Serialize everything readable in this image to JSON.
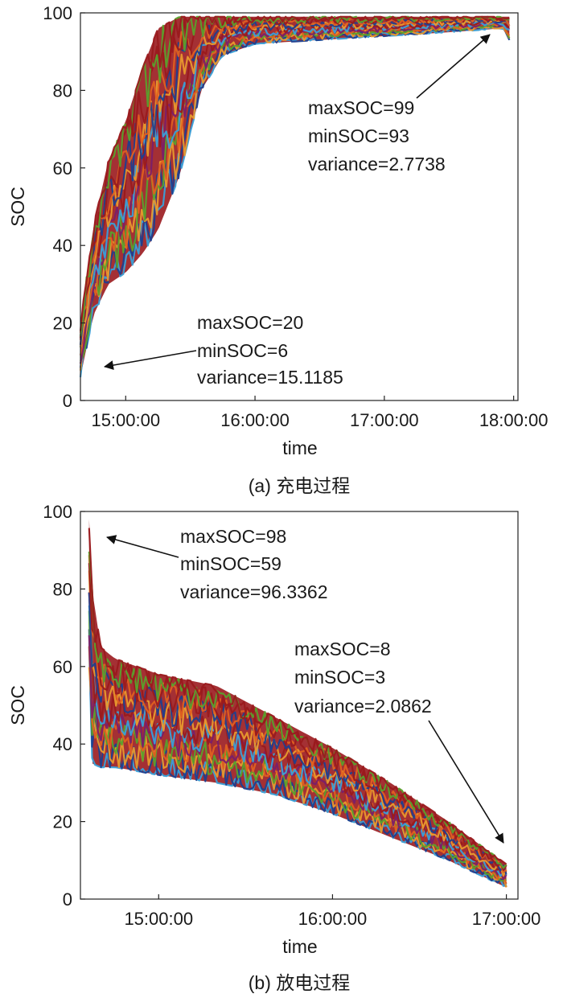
{
  "chart_data": [
    {
      "type": "line",
      "caption": "(a) 充电过程",
      "xlabel": "time",
      "ylabel": "SOC",
      "ylim": [
        0,
        100
      ],
      "xlim": [
        "14:39:00",
        "18:02:00"
      ],
      "yticks": [
        "0",
        "20",
        "40",
        "60",
        "80",
        "100"
      ],
      "xticks": [
        "15:00:00",
        "16:00:00",
        "17:00:00",
        "18:00:00"
      ],
      "series_colors": [
        "#1f3f8f",
        "#3aa0d8",
        "#e89a2e",
        "#e06020",
        "#7a1f6a",
        "#5aa02c",
        "#9a1a1e"
      ],
      "upper_envelope": {
        "x": [
          "14:39:00",
          "14:45:00",
          "14:52:00",
          "15:00:00",
          "15:08:00",
          "15:15:00",
          "15:25:00",
          "15:35:00",
          "15:45:00",
          "16:00:00",
          "16:30:00",
          "17:00:00",
          "17:30:00",
          "17:55:00",
          "17:58:00"
        ],
        "y": [
          20,
          45,
          62,
          72,
          86,
          96,
          99,
          99,
          99,
          99,
          99,
          99,
          99,
          99,
          99
        ]
      },
      "lower_envelope": {
        "x": [
          "14:39:00",
          "14:45:00",
          "14:52:00",
          "15:00:00",
          "15:08:00",
          "15:15:00",
          "15:25:00",
          "15:35:00",
          "15:45:00",
          "16:00:00",
          "16:30:00",
          "17:00:00",
          "17:30:00",
          "17:55:00",
          "17:58:00"
        ],
        "y": [
          6,
          22,
          30,
          33,
          38,
          44,
          58,
          80,
          89,
          92,
          93,
          94,
          95,
          96,
          93
        ]
      },
      "annotations": [
        {
          "lines": [
            "maxSOC=99",
            "minSOC=93",
            "variance=2.7738"
          ]
        },
        {
          "lines": [
            "maxSOC=20",
            "minSOC=6",
            "variance=15.1185"
          ]
        }
      ]
    },
    {
      "type": "line",
      "caption": "(b) 放电过程",
      "xlabel": "time",
      "ylabel": "SOC",
      "ylim": [
        0,
        100
      ],
      "xlim": [
        "14:33:00",
        "17:04:00"
      ],
      "yticks": [
        "0",
        "20",
        "40",
        "60",
        "80",
        "100"
      ],
      "xticks": [
        "15:00:00",
        "16:00:00",
        "17:00:00"
      ],
      "series_colors": [
        "#1f3f8f",
        "#3aa0d8",
        "#e89a2e",
        "#e06020",
        "#7a1f6a",
        "#5aa02c",
        "#9a1a1e"
      ],
      "upper_envelope": {
        "x": [
          "14:36:00",
          "14:37:00",
          "14:40:00",
          "14:45:00",
          "15:00:00",
          "15:20:00",
          "15:40:00",
          "16:00:00",
          "16:20:00",
          "16:40:00",
          "17:00:00"
        ],
        "y": [
          98,
          80,
          65,
          62,
          58,
          55,
          47,
          39,
          30,
          20,
          9
        ]
      },
      "lower_envelope": {
        "x": [
          "14:36:00",
          "14:37:00",
          "14:40:00",
          "14:45:00",
          "15:00:00",
          "15:20:00",
          "15:40:00",
          "16:00:00",
          "16:20:00",
          "16:40:00",
          "17:00:00"
        ],
        "y": [
          59,
          35,
          34,
          34,
          32,
          30,
          27,
          22,
          16,
          10,
          3
        ]
      },
      "annotations": [
        {
          "lines": [
            "maxSOC=98",
            "minSOC=59",
            "variance=96.3362"
          ]
        },
        {
          "lines": [
            "maxSOC=8",
            "minSOC=3",
            "variance=2.0862"
          ]
        }
      ]
    }
  ]
}
